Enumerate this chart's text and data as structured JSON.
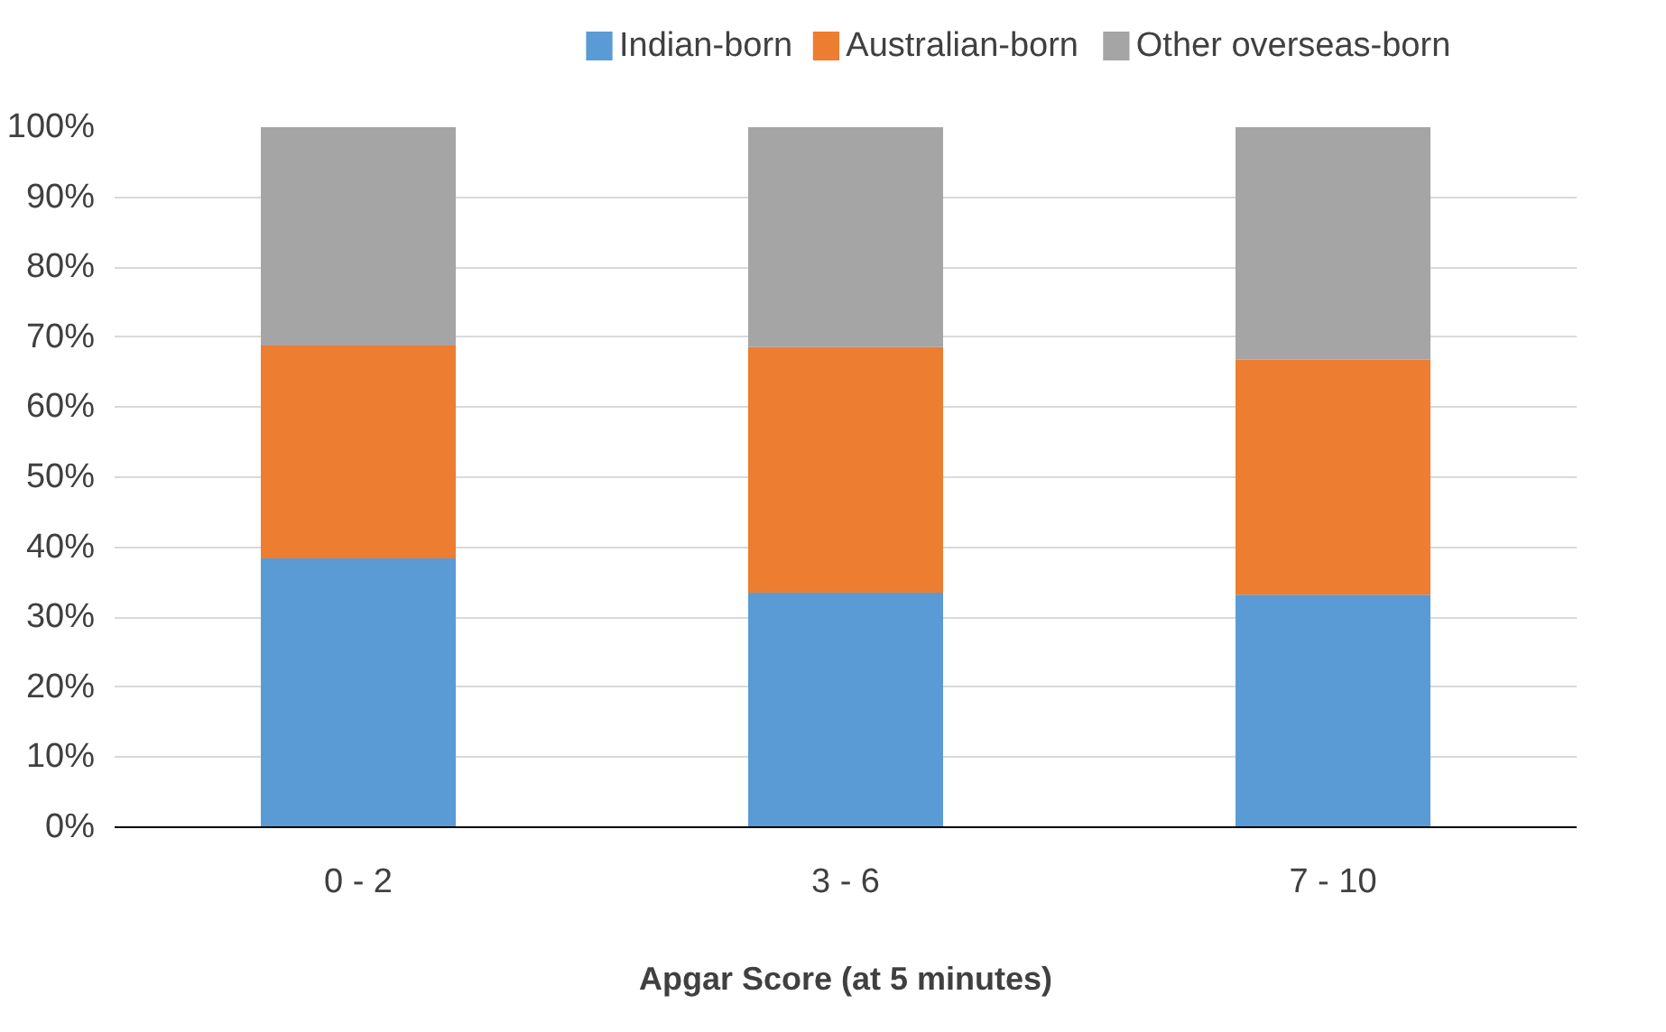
{
  "chart_data": {
    "type": "bar",
    "stacked": true,
    "xlabel": "Apgar Score (at 5 minutes)",
    "categories": [
      "0 - 2",
      "3 - 6",
      "7 - 10"
    ],
    "series": [
      {
        "name": "Indian-born",
        "color": "#5b9bd5",
        "values": [
          38.4,
          33.5,
          33.2
        ]
      },
      {
        "name": "Australian-born",
        "color": "#ed7d31",
        "values": [
          30.4,
          35.1,
          33.6
        ]
      },
      {
        "name": "Other overseas-born",
        "color": "#a5a5a5",
        "values": [
          31.2,
          31.4,
          33.2
        ]
      }
    ],
    "ylim": [
      0,
      100
    ],
    "yticks": [
      {
        "value": 0,
        "label": "0%"
      },
      {
        "value": 10,
        "label": "10%"
      },
      {
        "value": 20,
        "label": "20%"
      },
      {
        "value": 30,
        "label": "30%"
      },
      {
        "value": 40,
        "label": "40%"
      },
      {
        "value": 50,
        "label": "50%"
      },
      {
        "value": 60,
        "label": "60%"
      },
      {
        "value": 70,
        "label": "70%"
      },
      {
        "value": 80,
        "label": "80%"
      },
      {
        "value": 90,
        "label": "90%"
      },
      {
        "value": 100,
        "label": "100%"
      }
    ],
    "grid": "y",
    "legend": "top"
  }
}
